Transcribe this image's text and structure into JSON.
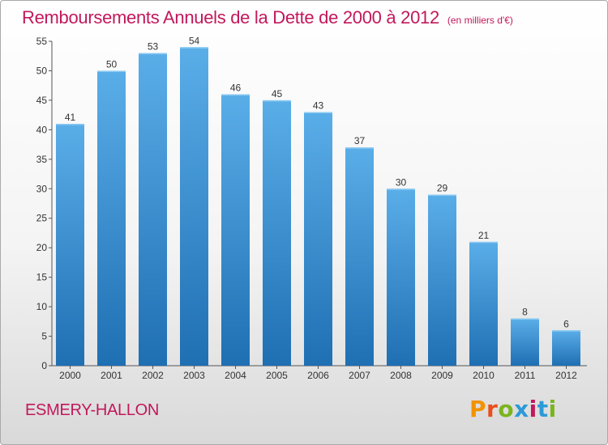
{
  "title": "Remboursements Annuels de la Dette de 2000 à 2012",
  "subtitle": "(en milliers d'€)",
  "commune": "ESMERY-HALLON",
  "logo": {
    "text": "Proxiti",
    "letters": [
      "P",
      "r",
      "o",
      "x",
      "i",
      "t",
      "i"
    ]
  },
  "colors": {
    "title": "#c2185b",
    "bar_top": "#5aaee8",
    "bar_bottom": "#1f6fb3"
  },
  "chart_data": {
    "type": "bar",
    "categories": [
      "2000",
      "2001",
      "2002",
      "2003",
      "2004",
      "2005",
      "2006",
      "2007",
      "2008",
      "2009",
      "2010",
      "2011",
      "2012"
    ],
    "values": [
      41,
      50,
      53,
      54,
      46,
      45,
      43,
      37,
      30,
      29,
      21,
      8,
      6
    ],
    "title": "Remboursements Annuels de la Dette de 2000 à 2012",
    "xlabel": "",
    "ylabel": "",
    "ylim": [
      0,
      55
    ],
    "yticks": [
      0,
      5,
      10,
      15,
      20,
      25,
      30,
      35,
      40,
      45,
      50,
      55
    ],
    "grid": false,
    "data_labels": true
  }
}
